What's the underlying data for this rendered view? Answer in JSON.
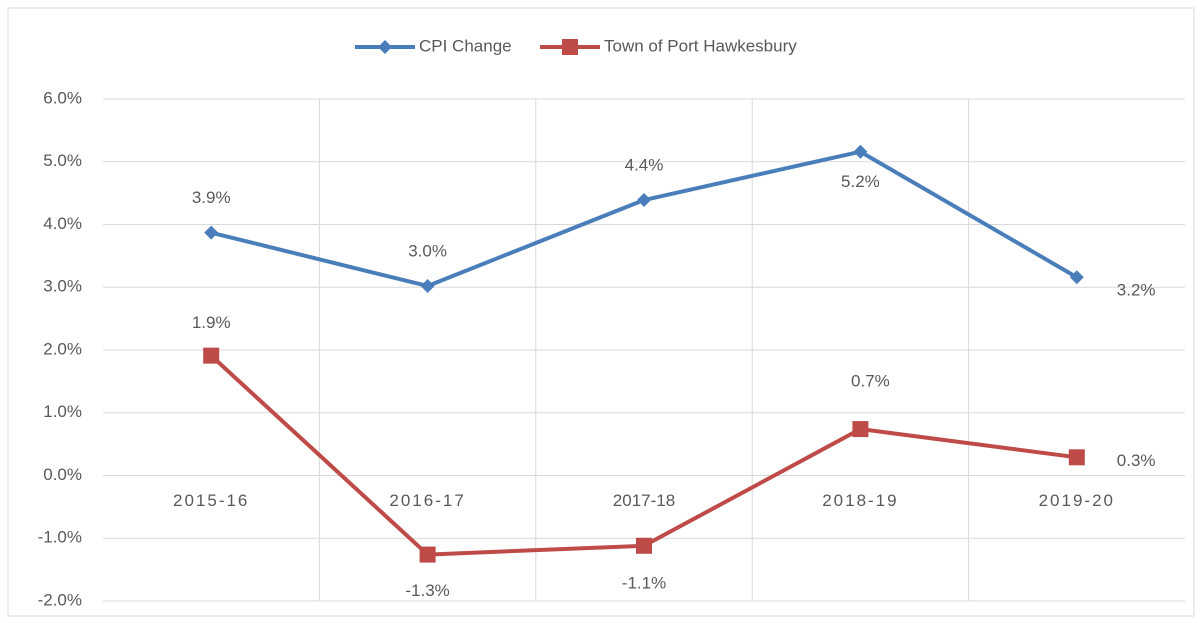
{
  "chart_data": {
    "type": "line",
    "categories": [
      "2015-16",
      "2016-17",
      "2017-18",
      "2018-19",
      "2019-20"
    ],
    "series": [
      {
        "name": "CPI Change",
        "color": "#4a7ebb",
        "values": [
          3.87,
          3.02,
          4.39,
          5.16,
          3.16
        ],
        "value_labels": [
          "3.9%",
          "3.0%",
          "4.4%",
          "5.2%",
          "3.2%"
        ]
      },
      {
        "name": "Town of Port Hawkesbury",
        "color": "#be4b48",
        "values": [
          1.91,
          -1.26,
          -1.12,
          0.74,
          0.29
        ],
        "value_labels": [
          "1.9%",
          "-1.3%",
          "-1.1%",
          "0.7%",
          "0.3%"
        ]
      }
    ],
    "ylim": [
      -2,
      6
    ],
    "yticks": [
      {
        "value": -2,
        "label": "-2.0%"
      },
      {
        "value": -1,
        "label": "-1.0%"
      },
      {
        "value": 0,
        "label": "0.0%"
      },
      {
        "value": 1,
        "label": "1.0%"
      },
      {
        "value": 2,
        "label": "2.0%"
      },
      {
        "value": 3,
        "label": "3.0%"
      },
      {
        "value": 4,
        "label": "4.0%"
      },
      {
        "value": 5,
        "label": "5.0%"
      },
      {
        "value": 6,
        "label": "6.0%"
      }
    ],
    "grid": true,
    "legend": "top"
  }
}
